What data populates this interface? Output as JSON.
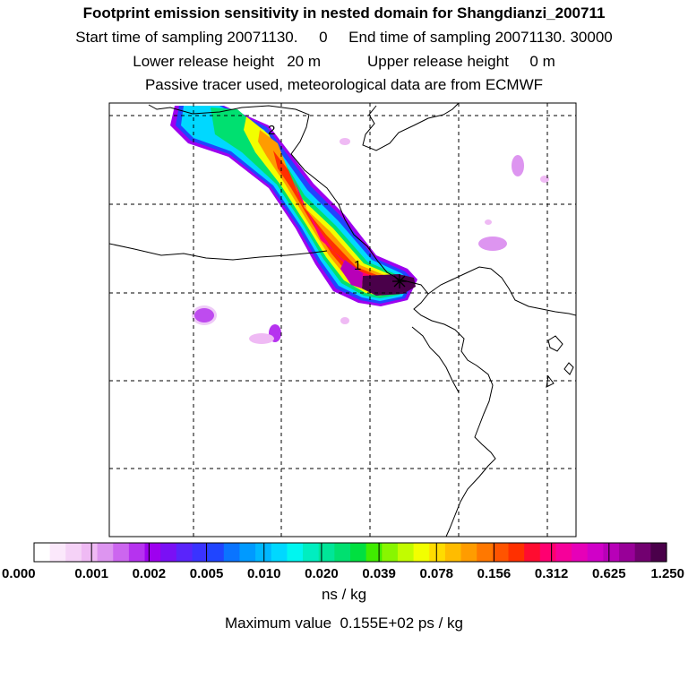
{
  "titles": {
    "line1": "Footprint emission sensitivity in nested domain for Shangdianzi_200711",
    "line2": "Start time of sampling 20071130.     0     End time of sampling 20071130. 30000",
    "line3": "Lower release height   20 m           Upper release height     0 m",
    "line4": "Passive tracer used, meteorological data are from ECMWF"
  },
  "map": {
    "markers": [
      {
        "label": "1"
      },
      {
        "label": "2"
      }
    ],
    "station_symbol": "star"
  },
  "colorbar": {
    "tick_labels": [
      "0.000",
      "0.001",
      "0.002",
      "0.005",
      "0.010",
      "0.020",
      "0.039",
      "0.078",
      "0.156",
      "0.312",
      "0.625",
      "1.250"
    ],
    "colors": [
      "#ffffff",
      "#fbe8fb",
      "#f5d2f7",
      "#efbaf4",
      "#dd95f0",
      "#cc66ef",
      "#b633ef",
      "#9e00ef",
      "#7a10f5",
      "#5a24fb",
      "#3a33ff",
      "#2045ff",
      "#0a74ff",
      "#009aff",
      "#00b8ff",
      "#00d8ff",
      "#00f6f0",
      "#00eec0",
      "#00e698",
      "#00e070",
      "#00e040",
      "#40ec00",
      "#88f600",
      "#c2fc00",
      "#f2ff00",
      "#ffdc00",
      "#ffbc00",
      "#ff9c00",
      "#ff7800",
      "#ff5400",
      "#ff3000",
      "#ff0c30",
      "#ff0070",
      "#f6009a",
      "#e600b8",
      "#d000c8",
      "#b800b8",
      "#980098",
      "#720070",
      "#4a004a"
    ],
    "units": "ns / kg"
  },
  "max_value_text": "Maximum value  0.155E+02 ps / kg"
}
